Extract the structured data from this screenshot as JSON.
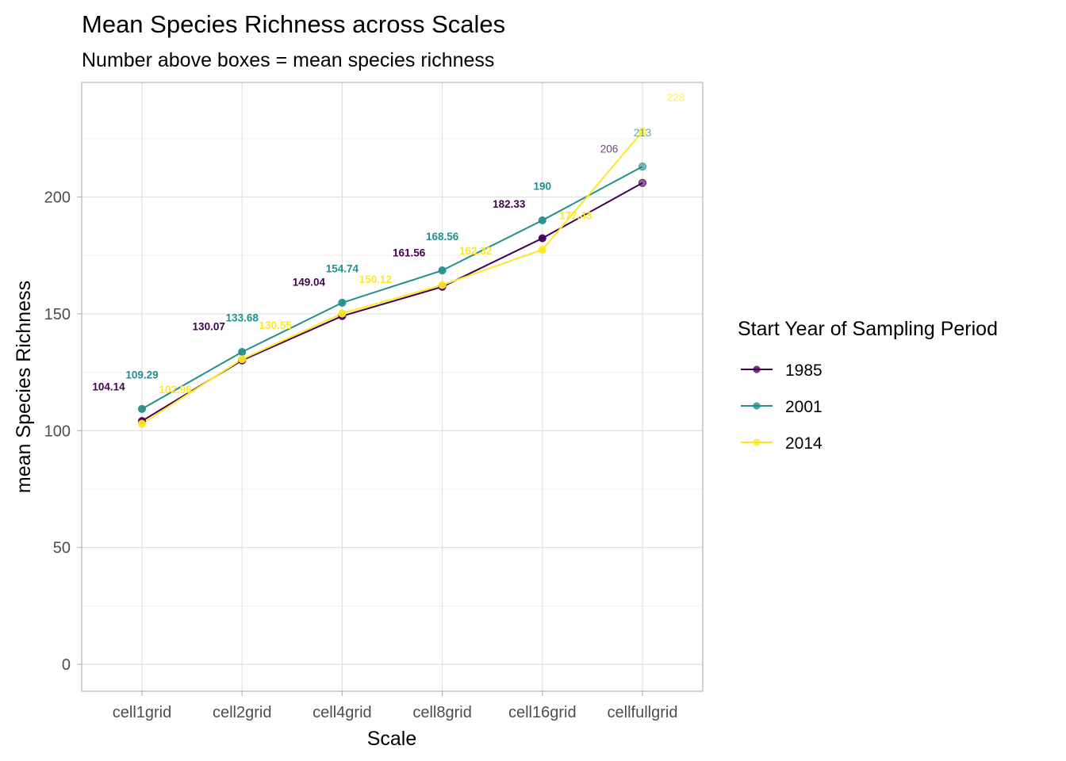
{
  "chart_data": {
    "type": "line",
    "title": "Mean Species Richness across Scales",
    "subtitle": "Number above boxes = mean species richness",
    "xlabel": "Scale",
    "ylabel": "mean Species Richness",
    "categories": [
      "cell1grid",
      "cell2grid",
      "cell4grid",
      "cell8grid",
      "cell16grid",
      "cellfullgrid"
    ],
    "ylim": [
      -11.5,
      249
    ],
    "yticks": [
      0,
      50,
      100,
      150,
      200
    ],
    "grid": true,
    "legend": {
      "title": "Start Year of Sampling Period",
      "position": "right"
    },
    "series": [
      {
        "name": "1985",
        "color": "#440154",
        "values": [
          104.14,
          130.07,
          149.04,
          161.56,
          182.33,
          206
        ],
        "labels": [
          "104.14",
          "130.07",
          "149.04",
          "161.56",
          "182.33",
          "206"
        ]
      },
      {
        "name": "2001",
        "color": "#21908C",
        "values": [
          109.29,
          133.68,
          154.74,
          168.56,
          190,
          213
        ],
        "labels": [
          "109.29",
          "133.68",
          "154.74",
          "168.56",
          "190",
          "213"
        ]
      },
      {
        "name": "2014",
        "color": "#FDE725",
        "values": [
          102.96,
          130.55,
          150.12,
          162.32,
          177.43,
          228
        ],
        "labels": [
          "102.96",
          "130.55",
          "150.12",
          "162.32",
          "177.43",
          "228"
        ]
      }
    ]
  }
}
